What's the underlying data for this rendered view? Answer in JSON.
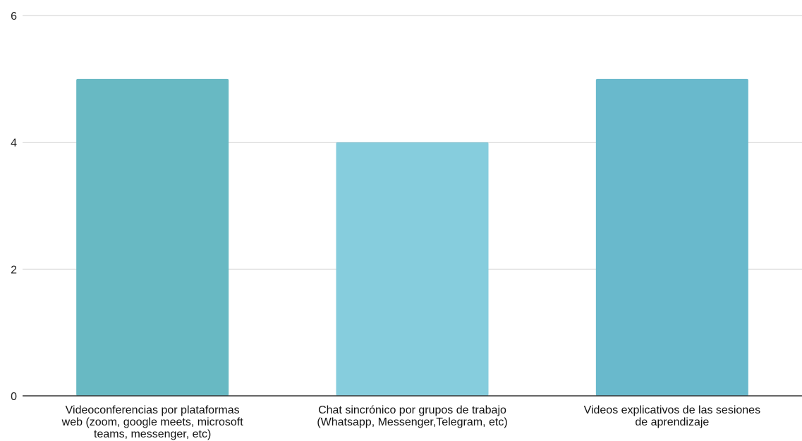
{
  "chart_data": {
    "type": "bar",
    "categories": [
      [
        "Videoconferencias por plataformas",
        "web (zoom, google meets, microsoft",
        "teams, messenger, etc)"
      ],
      [
        "Chat sincrónico por grupos de trabajo",
        "(Whatsapp, Messenger,Telegram, etc)"
      ],
      [
        "Videos explicativos de las sesiones",
        "de aprendizaje"
      ]
    ],
    "values": [
      5,
      4,
      5
    ],
    "colors": [
      "#68b9c3",
      "#86cddd",
      "#69b9cc"
    ],
    "ylim": [
      0,
      6
    ],
    "yticks": [
      "0",
      "2",
      "4",
      "6"
    ],
    "grid": true,
    "legend": "none",
    "title": "",
    "xlabel": "",
    "ylabel": ""
  }
}
